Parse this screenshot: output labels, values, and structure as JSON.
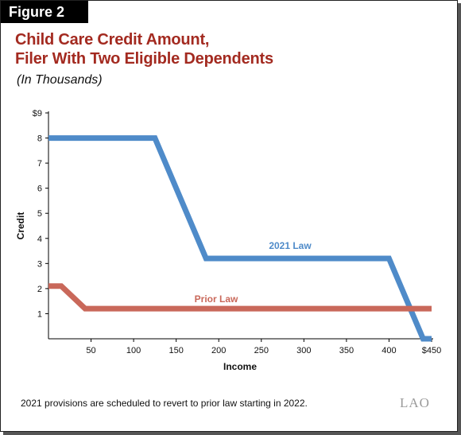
{
  "figure_label": "Figure 2",
  "footnote": "2021 provisions are scheduled to revert to prior law starting in 2022.",
  "logo_text": "LAO",
  "colors": {
    "title": "#a32a20",
    "law_2021": "#4f8bc9",
    "prior_law": "#c9685a"
  },
  "chart_data": {
    "type": "line",
    "title": [
      "Child Care Credit Amount,",
      "Filer With Two Eligible Dependents"
    ],
    "subtitle": "(In Thousands)",
    "xlabel": "Income",
    "ylabel": "Credit",
    "xlim": [
      0,
      450
    ],
    "ylim": [
      0,
      9
    ],
    "x_ticks": [
      50,
      100,
      150,
      200,
      250,
      300,
      350,
      400,
      450
    ],
    "x_tick_labels": [
      "50",
      "100",
      "150",
      "200",
      "250",
      "300",
      "350",
      "400",
      "$450"
    ],
    "y_ticks": [
      1,
      2,
      3,
      4,
      5,
      6,
      7,
      8,
      9
    ],
    "y_tick_labels": [
      "1",
      "2",
      "3",
      "4",
      "5",
      "6",
      "7",
      "8",
      "$9"
    ],
    "grid": false,
    "series": [
      {
        "name": "2021 Law",
        "color": "#4f8bc9",
        "x": [
          0,
          125,
          185,
          400,
          440,
          450
        ],
        "y": [
          8,
          8,
          3.2,
          3.2,
          0,
          0
        ]
      },
      {
        "name": "Prior Law",
        "color": "#c9685a",
        "x": [
          0,
          15,
          43,
          450
        ],
        "y": [
          2.1,
          2.1,
          1.2,
          1.2
        ]
      }
    ]
  }
}
